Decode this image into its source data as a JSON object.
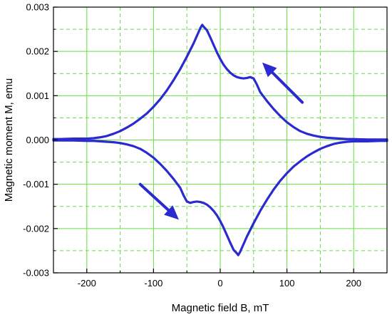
{
  "chart_data": {
    "type": "line",
    "title": "",
    "xlabel": "Magnetic field B, mT",
    "ylabel": "Magnetic moment M, emu",
    "xlim": [
      -250,
      250
    ],
    "ylim": [
      -0.003,
      0.003
    ],
    "x_ticks": [
      -200,
      -100,
      0,
      100,
      200
    ],
    "x_tick_labels": [
      "-200",
      "-100",
      "0",
      "100",
      "200"
    ],
    "x_minor_ticks": [
      -150,
      -50,
      50,
      150
    ],
    "y_ticks": [
      -0.003,
      -0.002,
      -0.001,
      0,
      0.001,
      0.002,
      0.003
    ],
    "y_tick_labels": [
      "-0.003",
      "-0.002",
      "-0.001",
      "0.000",
      "0.001",
      "0.002",
      "0.003"
    ],
    "y_minor_ticks": [
      -0.0025,
      -0.0015,
      -0.0005,
      0.0005,
      0.0015,
      0.0025
    ],
    "grid": true,
    "grid_color": "#66dd44",
    "line_color": "#2a2ad0",
    "arrow_color": "#2a2ad0",
    "series": [
      {
        "x": [
          -250,
          -240,
          -220,
          -200,
          -190,
          -180,
          -170,
          -160,
          -150,
          -140,
          -130,
          -120,
          -110,
          -100,
          -90,
          -80,
          -70,
          -60,
          -50,
          -40,
          -35,
          -30,
          -27,
          -25,
          -20,
          -15,
          -10,
          -5,
          0,
          5,
          10,
          15,
          20,
          25,
          30,
          35,
          40,
          45,
          50,
          55,
          60,
          70,
          80,
          90,
          100,
          110,
          120,
          130,
          140,
          150,
          160,
          170,
          180,
          190,
          200,
          220,
          240,
          250
        ],
        "y": [
          2e-05,
          2e-05,
          3e-05,
          3e-05,
          4e-05,
          6e-05,
          9e-05,
          0.00014,
          0.0002,
          0.00028,
          0.00037,
          0.00048,
          0.0006,
          0.00075,
          0.00092,
          0.00112,
          0.00135,
          0.0016,
          0.00188,
          0.00218,
          0.00235,
          0.00252,
          0.0026,
          0.00256,
          0.00248,
          0.00232,
          0.00215,
          0.00198,
          0.00183,
          0.0017,
          0.0016,
          0.00152,
          0.00146,
          0.00142,
          0.0014,
          0.00139,
          0.0014,
          0.00142,
          0.00139,
          0.00125,
          0.00108,
          0.00088,
          0.0007,
          0.00054,
          0.0004,
          0.00029,
          0.0002,
          0.00014,
          0.0001,
          7e-05,
          5e-05,
          4e-05,
          3e-05,
          2e-05,
          2e-05,
          1e-05,
          1e-05,
          1e-05
        ]
      },
      {
        "x": [
          -250,
          -240,
          -220,
          -200,
          -190,
          -180,
          -170,
          -160,
          -150,
          -140,
          -130,
          -120,
          -110,
          -100,
          -90,
          -80,
          -70,
          -60,
          -55,
          -50,
          -45,
          -40,
          -35,
          -30,
          -25,
          -20,
          -15,
          -10,
          -5,
          0,
          5,
          10,
          15,
          20,
          25,
          27,
          30,
          35,
          40,
          50,
          60,
          70,
          80,
          90,
          100,
          110,
          120,
          130,
          140,
          150,
          160,
          170,
          180,
          190,
          200,
          220,
          240,
          250
        ],
        "y": [
          -1e-05,
          -1e-05,
          -1e-05,
          -2e-05,
          -2e-05,
          -3e-05,
          -4e-05,
          -5e-05,
          -7e-05,
          -0.0001,
          -0.00014,
          -0.0002,
          -0.00029,
          -0.0004,
          -0.00054,
          -0.0007,
          -0.00088,
          -0.00108,
          -0.00125,
          -0.00139,
          -0.00142,
          -0.0014,
          -0.00139,
          -0.0014,
          -0.00142,
          -0.00146,
          -0.00152,
          -0.0016,
          -0.0017,
          -0.00183,
          -0.00198,
          -0.00215,
          -0.00232,
          -0.00248,
          -0.00256,
          -0.0026,
          -0.00252,
          -0.00235,
          -0.00218,
          -0.00188,
          -0.0016,
          -0.00135,
          -0.00112,
          -0.00092,
          -0.00075,
          -0.0006,
          -0.00048,
          -0.00037,
          -0.00028,
          -0.0002,
          -0.00014,
          -9e-05,
          -6e-05,
          -4e-05,
          -3e-05,
          -3e-05,
          -2e-05,
          -2e-05
        ]
      }
    ],
    "arrows": [
      {
        "from": [
          123,
          0.00085
        ],
        "to": [
          63,
          0.00175
        ],
        "direction": "up-left"
      },
      {
        "from": [
          -120,
          -0.001
        ],
        "to": [
          -62,
          -0.0018
        ],
        "direction": "down-right"
      }
    ]
  }
}
